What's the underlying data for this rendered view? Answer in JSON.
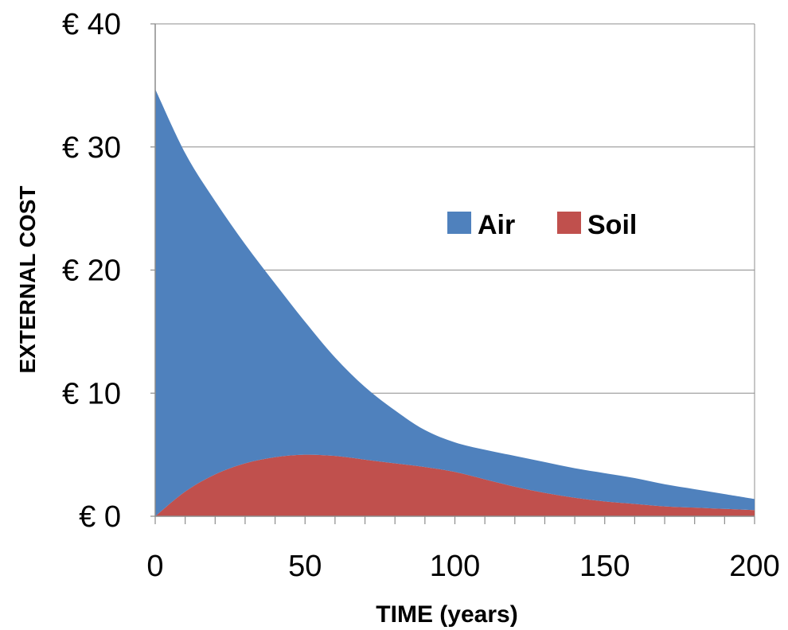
{
  "chart_data": {
    "type": "area",
    "stacked": true,
    "x": [
      0,
      10,
      20,
      30,
      40,
      50,
      60,
      70,
      80,
      90,
      100,
      110,
      120,
      130,
      140,
      150,
      160,
      170,
      180,
      190,
      200
    ],
    "series": [
      {
        "name": "Soil",
        "color": "#c0504d",
        "values": [
          0,
          2.0,
          3.4,
          4.3,
          4.8,
          5.0,
          4.9,
          4.6,
          4.3,
          4.0,
          3.6,
          3.0,
          2.4,
          1.9,
          1.5,
          1.2,
          1.0,
          0.8,
          0.7,
          0.6,
          0.5
        ]
      },
      {
        "name": "Air",
        "color": "#4f81bd",
        "values": [
          34.7,
          27.5,
          22.2,
          17.8,
          14.1,
          10.8,
          8.0,
          5.9,
          4.3,
          3.0,
          2.4,
          2.4,
          2.5,
          2.5,
          2.4,
          2.3,
          2.1,
          1.8,
          1.5,
          1.2,
          0.9
        ]
      }
    ],
    "xlabel": "TIME (years)",
    "ylabel": "EXTERNAL COST",
    "xlim": [
      0,
      200
    ],
    "ylim": [
      0,
      40
    ],
    "xticks": [
      0,
      50,
      100,
      150,
      200
    ],
    "yticks": [
      0,
      10,
      20,
      30,
      40
    ],
    "ytick_labels": [
      "€ 0",
      "€ 10",
      "€ 20",
      "€ 30",
      "€ 40"
    ],
    "grid": "horizontal",
    "legend_position": "upper-right",
    "legend_order": [
      "Air",
      "Soil"
    ]
  }
}
